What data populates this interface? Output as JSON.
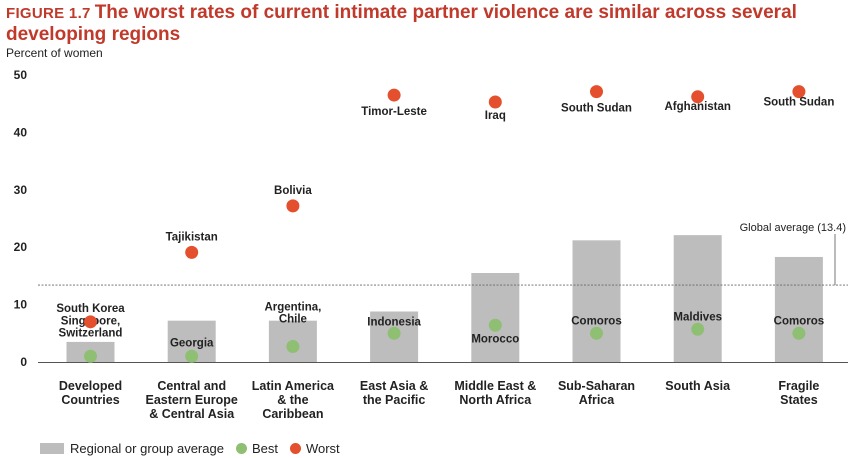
{
  "figure": {
    "number": "FIGURE 1.7",
    "title": "The worst rates of current intimate partner violence are similar across several developing regions"
  },
  "colors": {
    "bar": "#bdbdbd",
    "best": "#8fbf73",
    "worst": "#e4502d",
    "title": "#c0392b"
  },
  "chart_data": {
    "type": "bar",
    "ylabel": "Percent of women",
    "ylim": [
      0,
      50
    ],
    "yticks": [
      0,
      10,
      20,
      30,
      40,
      50
    ],
    "reference_line": {
      "value": 13.4,
      "label": "Global average (13.4)"
    },
    "categories": [
      [
        "Developed",
        "Countries"
      ],
      [
        "Central and",
        "Eastern Europe",
        "& Central Asia"
      ],
      [
        "Latin America",
        "& the",
        "Caribbean"
      ],
      [
        "East Asia &",
        "the Pacific"
      ],
      [
        "Middle East &",
        "North Africa"
      ],
      [
        "Sub-Saharan",
        "Africa"
      ],
      [
        "South Asia"
      ],
      [
        "Fragile",
        "States"
      ]
    ],
    "series": [
      {
        "name": "Regional or group average",
        "values": [
          3.5,
          7.2,
          7.2,
          8.8,
          15.5,
          21.2,
          22.1,
          18.3
        ]
      },
      {
        "name": "Best",
        "values": [
          1.0,
          1.0,
          2.7,
          5.0,
          6.4,
          5.0,
          5.7,
          5.0
        ],
        "labels": [
          [
            "Singapore,",
            "Switzerland"
          ],
          [
            "Georgia"
          ],
          [
            "Argentina,",
            "Chile"
          ],
          [
            "Indonesia"
          ],
          [
            "Morocco"
          ],
          [
            "Comoros"
          ],
          [
            "Maldives"
          ],
          [
            "Comoros"
          ]
        ]
      },
      {
        "name": "Worst",
        "values": [
          7.0,
          19.1,
          27.2,
          46.5,
          45.3,
          47.1,
          46.2,
          47.1
        ],
        "labels": [
          [
            "South Korea"
          ],
          [
            "Tajikistan"
          ],
          [
            "Bolivia"
          ],
          [
            "Timor-Leste"
          ],
          [
            "Iraq"
          ],
          [
            "South Sudan"
          ],
          [
            "Afghanistan"
          ],
          [
            "South Sudan"
          ]
        ]
      }
    ]
  },
  "legend": {
    "average": "Regional or group average",
    "best": "Best",
    "worst": "Worst"
  }
}
